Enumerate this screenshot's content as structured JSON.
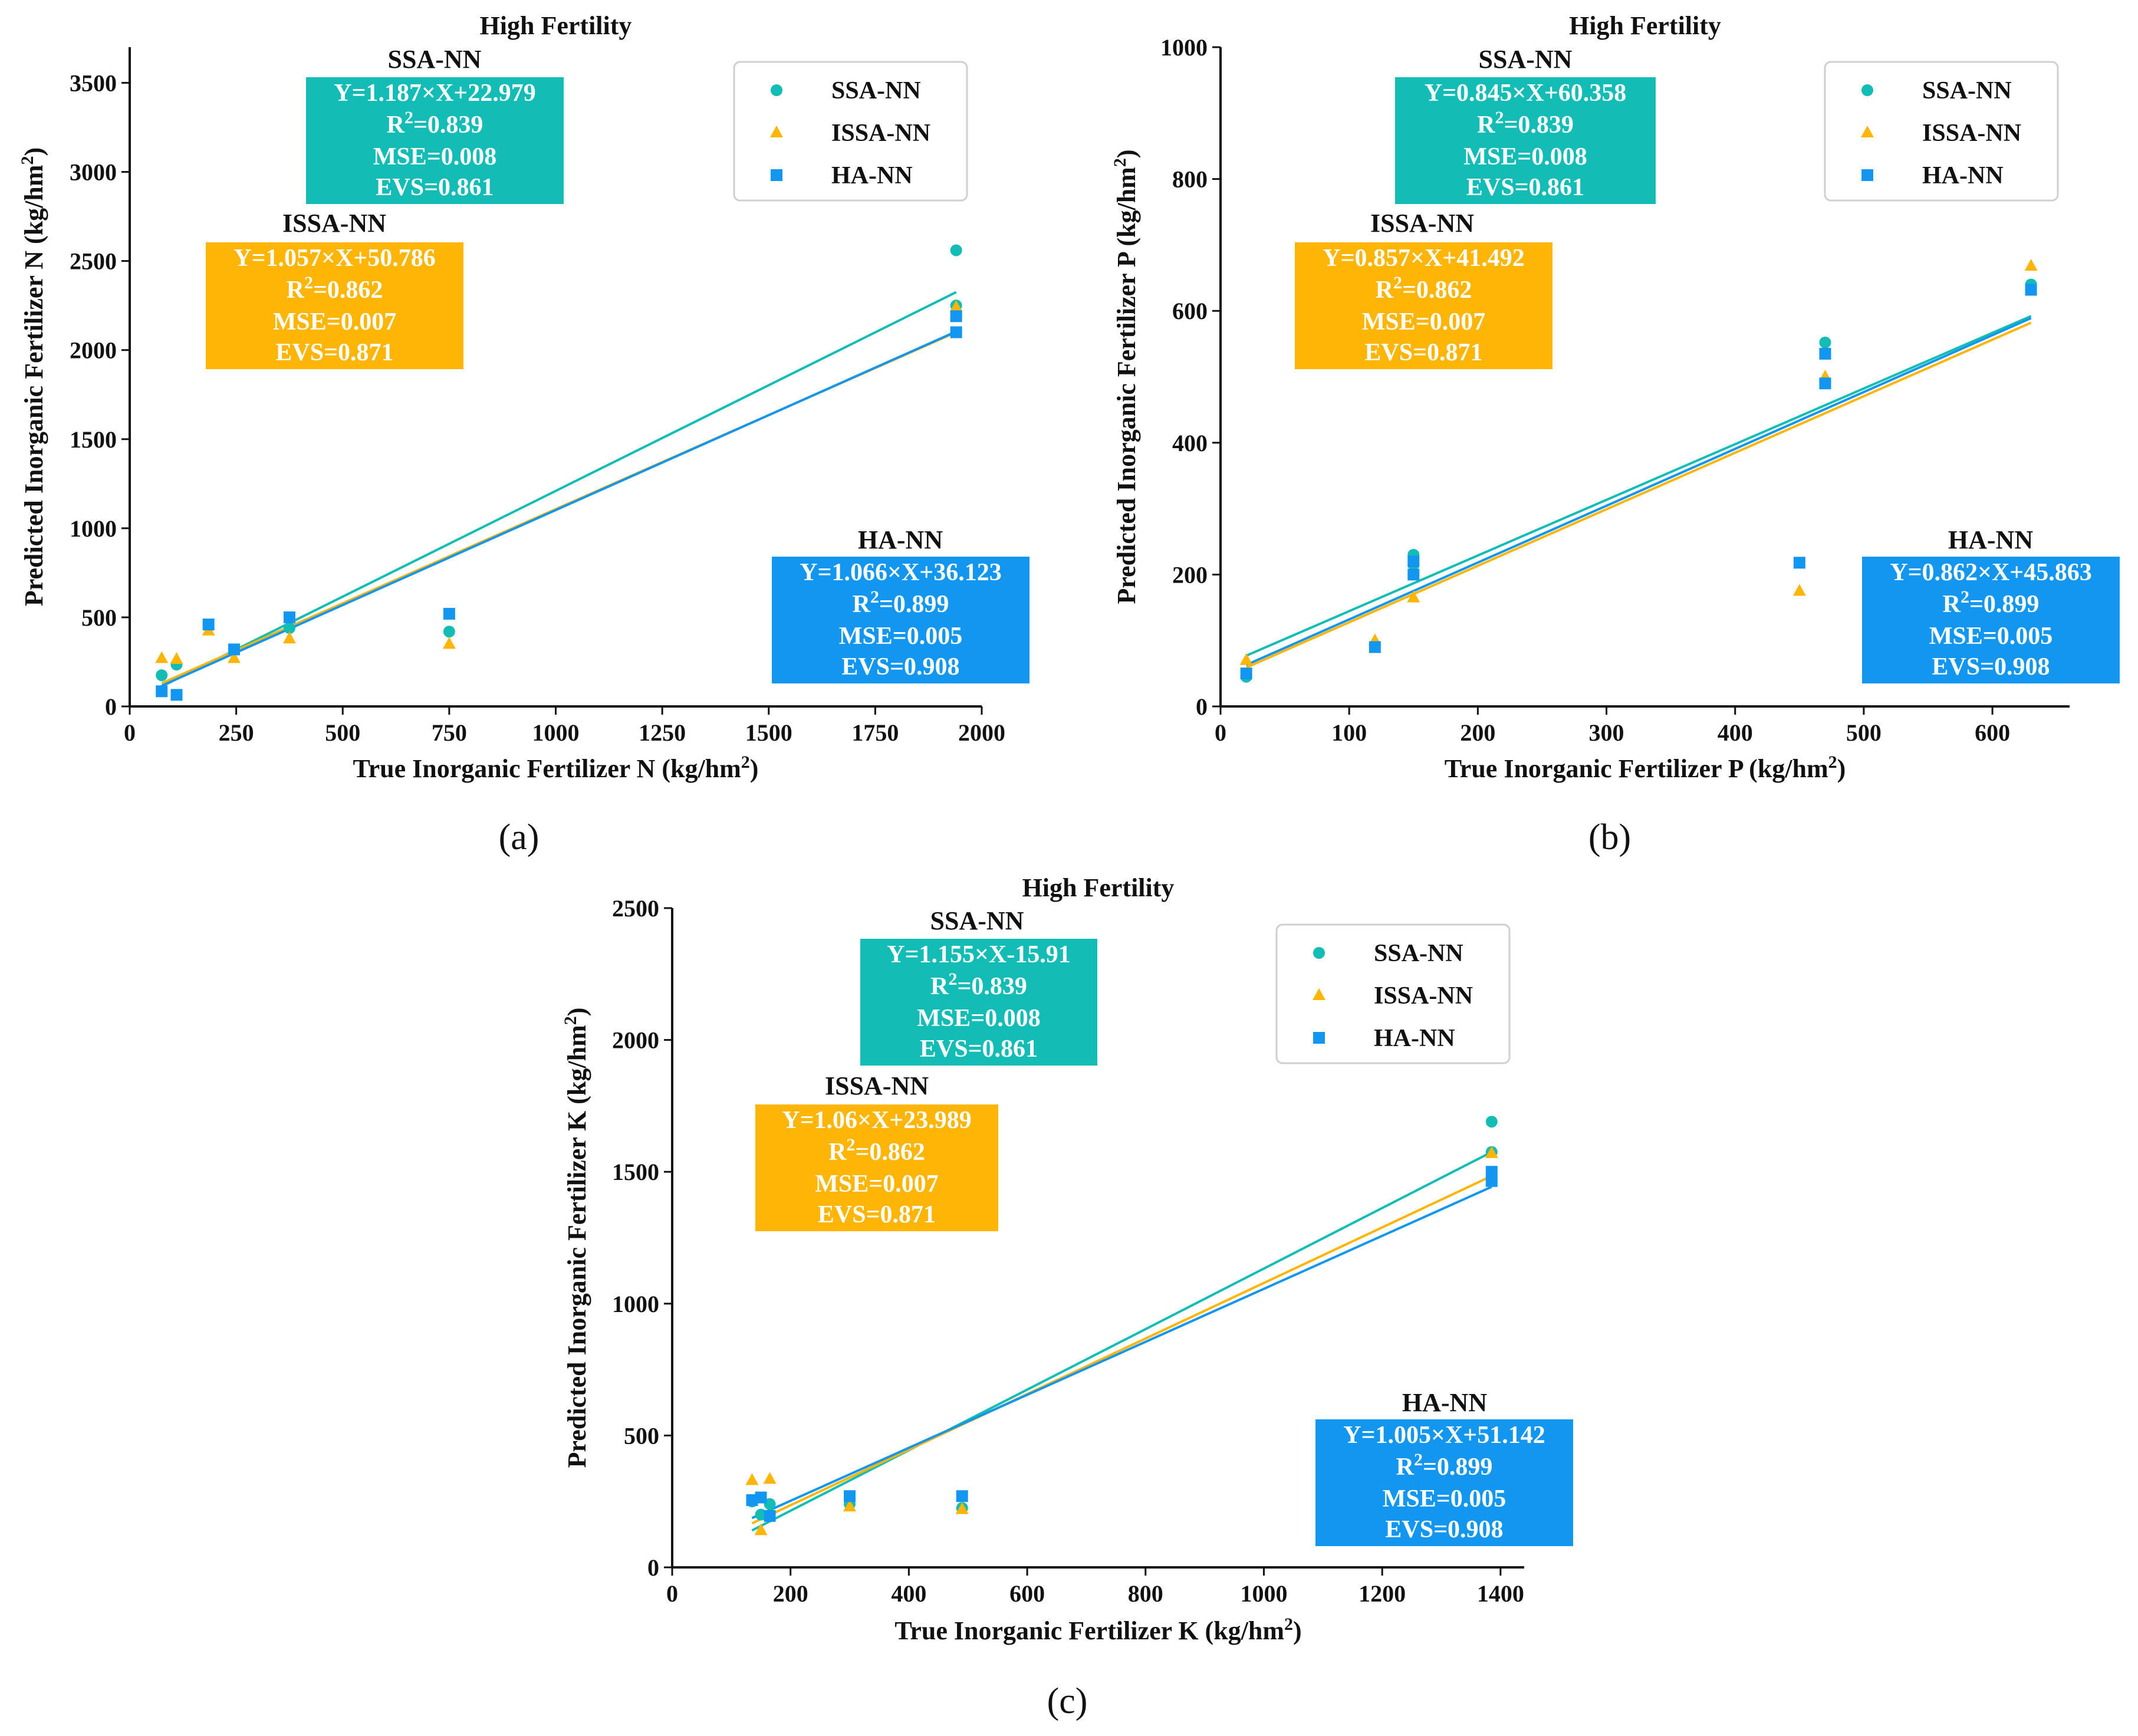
{
  "colors": {
    "ssa": "#13bcb4",
    "issa": "#ffb506",
    "ha": "#1296f0",
    "axis": "#111111",
    "text": "#111111",
    "box_text": "#ffffff",
    "legend_border": "#cfcfcf"
  },
  "figure": {
    "series_names": [
      "SSA-NN",
      "ISSA-NN",
      "HA-NN"
    ],
    "marker_shapes": [
      "circle-marker",
      "triangle-marker",
      "square-marker"
    ]
  },
  "chart_data": [
    {
      "id": "a",
      "type": "scatter",
      "caption": "(a)",
      "title": "High Fertility",
      "xlabel": "True Inorganic Fertilizer N (kg/hm",
      "ylabel": "Predicted Inorganic Fertilizer N (kg/hm",
      "unit_superscript": "2",
      "unit_close": ")",
      "xlim": [
        0,
        2000
      ],
      "ylim": [
        0,
        3700
      ],
      "xticks": [
        0,
        250,
        500,
        750,
        1000,
        1250,
        1500,
        1750,
        2000
      ],
      "yticks": [
        0,
        500,
        1000,
        1500,
        2000,
        2500,
        3000,
        3500
      ],
      "legend": [
        "SSA-NN",
        "ISSA-NN",
        "HA-NN"
      ],
      "series": [
        {
          "name": "SSA-NN",
          "color_key": "ssa",
          "marker": "circle",
          "points": [
            [
              75,
              175
            ],
            [
              110,
              235
            ],
            [
              185,
              450
            ],
            [
              375,
              440
            ],
            [
              750,
              420
            ],
            [
              1940,
              2560
            ],
            [
              1940,
              2250
            ]
          ],
          "fit_line": [
            [
              75,
              112
            ],
            [
              1940,
              2325
            ]
          ]
        },
        {
          "name": "ISSA-NN",
          "color_key": "issa",
          "marker": "triangle",
          "points": [
            [
              75,
              270
            ],
            [
              110,
              265
            ],
            [
              185,
              425
            ],
            [
              245,
              270
            ],
            [
              375,
              380
            ],
            [
              750,
              350
            ],
            [
              1940,
              2240
            ]
          ],
          "fit_line": [
            [
              75,
              130
            ],
            [
              1940,
              2100
            ]
          ]
        },
        {
          "name": "HA-NN",
          "color_key": "ha",
          "marker": "square",
          "points": [
            [
              75,
              85
            ],
            [
              110,
              65
            ],
            [
              185,
              460
            ],
            [
              245,
              320
            ],
            [
              375,
              500
            ],
            [
              750,
              520
            ],
            [
              1940,
              2190
            ],
            [
              1940,
              2100
            ]
          ],
          "fit_line": [
            [
              75,
              116
            ],
            [
              1940,
              2104
            ]
          ]
        }
      ],
      "annotations": [
        {
          "series": "SSA-NN",
          "title": "SSA-NN",
          "equation": "Y=1.187×X+22.979",
          "r2_prefix": "R",
          "r2_sup": "2",
          "r2_value": "=0.839",
          "mse": "MSE=0.008",
          "evs": "EVS=0.861"
        },
        {
          "series": "ISSA-NN",
          "title": "ISSA-NN",
          "equation": "Y=1.057×X+50.786",
          "r2_prefix": "R",
          "r2_sup": "2",
          "r2_value": "=0.862",
          "mse": "MSE=0.007",
          "evs": "EVS=0.871"
        },
        {
          "series": "HA-NN",
          "title": "HA-NN",
          "equation": "Y=1.066×X+36.123",
          "r2_prefix": "R",
          "r2_sup": "2",
          "r2_value": "=0.899",
          "mse": "MSE=0.005",
          "evs": "EVS=0.908"
        }
      ]
    },
    {
      "id": "b",
      "type": "scatter",
      "caption": "(b)",
      "title": "High Fertility",
      "xlabel": "True Inorganic Fertilizer P (kg/hm",
      "ylabel": "Predicted Inorganic Fertilizer P (kg/hm",
      "unit_superscript": "2",
      "unit_close": ")",
      "xlim": [
        0,
        660
      ],
      "ylim": [
        0,
        1000
      ],
      "xticks": [
        0,
        100,
        200,
        300,
        400,
        500,
        600
      ],
      "yticks": [
        0,
        200,
        400,
        600,
        800,
        1000
      ],
      "legend": [
        "SSA-NN",
        "ISSA-NN",
        "HA-NN"
      ],
      "series": [
        {
          "name": "SSA-NN",
          "color_key": "ssa",
          "marker": "circle",
          "points": [
            [
              20,
              45
            ],
            [
              150,
              230
            ],
            [
              150,
              215
            ],
            [
              470,
              552
            ],
            [
              630,
              640
            ]
          ],
          "fit_line": [
            [
              20,
              77
            ],
            [
              630,
              592
            ]
          ]
        },
        {
          "name": "ISSA-NN",
          "color_key": "issa",
          "marker": "triangle",
          "points": [
            [
              20,
              70
            ],
            [
              120,
              100
            ],
            [
              150,
              165
            ],
            [
              450,
              175
            ],
            [
              470,
              500
            ],
            [
              630,
              668
            ]
          ],
          "fit_line": [
            [
              20,
              59
            ],
            [
              630,
              582
            ]
          ]
        },
        {
          "name": "HA-NN",
          "color_key": "ha",
          "marker": "square",
          "points": [
            [
              20,
              50
            ],
            [
              120,
              90
            ],
            [
              150,
              200
            ],
            [
              150,
              220
            ],
            [
              450,
              218
            ],
            [
              470,
              535
            ],
            [
              470,
              490
            ],
            [
              630,
              632
            ]
          ],
          "fit_line": [
            [
              20,
              63
            ],
            [
              630,
              589
            ]
          ]
        }
      ],
      "annotations": [
        {
          "series": "SSA-NN",
          "title": "SSA-NN",
          "equation": "Y=0.845×X+60.358",
          "r2_prefix": "R",
          "r2_sup": "2",
          "r2_value": "=0.839",
          "mse": "MSE=0.008",
          "evs": "EVS=0.861"
        },
        {
          "series": "ISSA-NN",
          "title": "ISSA-NN",
          "equation": "Y=0.857×X+41.492",
          "r2_prefix": "R",
          "r2_sup": "2",
          "r2_value": "=0.862",
          "mse": "MSE=0.007",
          "evs": "EVS=0.871"
        },
        {
          "series": "HA-NN",
          "title": "HA-NN",
          "equation": "Y=0.862×X+45.863",
          "r2_prefix": "R",
          "r2_sup": "2",
          "r2_value": "=0.899",
          "mse": "MSE=0.005",
          "evs": "EVS=0.908"
        }
      ]
    },
    {
      "id": "c",
      "type": "scatter",
      "caption": "(c)",
      "title": "High Fertility",
      "xlabel": "True Inorganic Fertilizer K (kg/hm",
      "ylabel": "Predicted Inorganic Fertilizer K (kg/hm",
      "unit_superscript": "2",
      "unit_close": ")",
      "xlim": [
        0,
        1440
      ],
      "ylim": [
        0,
        2500
      ],
      "xticks": [
        0,
        200,
        400,
        600,
        800,
        1000,
        1200,
        1400
      ],
      "yticks": [
        0,
        500,
        1000,
        1500,
        2000,
        2500
      ],
      "legend": [
        "SSA-NN",
        "ISSA-NN",
        "HA-NN"
      ],
      "series": [
        {
          "name": "SSA-NN",
          "color_key": "ssa",
          "marker": "circle",
          "points": [
            [
              135,
              250
            ],
            [
              150,
              200
            ],
            [
              165,
              240
            ],
            [
              300,
              240
            ],
            [
              490,
              225
            ],
            [
              1385,
              1690
            ],
            [
              1385,
              1575
            ]
          ],
          "fit_line": [
            [
              135,
              140
            ],
            [
              1385,
              1575
            ]
          ]
        },
        {
          "name": "ISSA-NN",
          "color_key": "issa",
          "marker": "triangle",
          "points": [
            [
              135,
              330
            ],
            [
              150,
              140
            ],
            [
              165,
              335
            ],
            [
              300,
              230
            ],
            [
              490,
              220
            ],
            [
              1385,
              1570
            ]
          ],
          "fit_line": [
            [
              135,
              167
            ],
            [
              1385,
              1484
            ]
          ]
        },
        {
          "name": "HA-NN",
          "color_key": "ha",
          "marker": "square",
          "points": [
            [
              135,
              255
            ],
            [
              150,
              265
            ],
            [
              165,
              195
            ],
            [
              300,
              270
            ],
            [
              490,
              270
            ],
            [
              1385,
              1500
            ],
            [
              1385,
              1465
            ]
          ],
          "fit_line": [
            [
              135,
              187
            ],
            [
              1385,
              1443
            ]
          ]
        }
      ],
      "annotations": [
        {
          "series": "SSA-NN",
          "title": "SSA-NN",
          "equation": "Y=1.155×X-15.91",
          "r2_prefix": "R",
          "r2_sup": "2",
          "r2_value": "=0.839",
          "mse": "MSE=0.008",
          "evs": "EVS=0.861"
        },
        {
          "series": "ISSA-NN",
          "title": "ISSA-NN",
          "equation": "Y=1.06×X+23.989",
          "r2_prefix": "R",
          "r2_sup": "2",
          "r2_value": "=0.862",
          "mse": "MSE=0.007",
          "evs": "EVS=0.871"
        },
        {
          "series": "HA-NN",
          "title": "HA-NN",
          "equation": "Y=1.005×X+51.142",
          "r2_prefix": "R",
          "r2_sup": "2",
          "r2_value": "=0.899",
          "mse": "MSE=0.005",
          "evs": "EVS=0.908"
        }
      ]
    }
  ]
}
